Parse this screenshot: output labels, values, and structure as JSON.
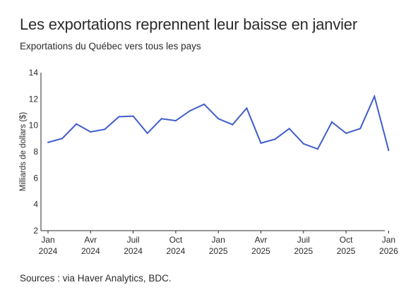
{
  "header": {
    "title": "Les exportations reprennent leur baisse en janvier",
    "subtitle": "Exportations du Québec vers tous les pays"
  },
  "footer": {
    "source": "Sources : via Haver Analytics, BDC."
  },
  "colors": {
    "line": "#3f5ccc",
    "axis": "#2b2b2b"
  },
  "chart_data": {
    "type": "line",
    "title": "Les exportations reprennent leur baisse en janvier",
    "subtitle": "Exportations du Québec vers tous les pays",
    "xlabel": "",
    "ylabel": "Milliards de dollars ($)",
    "ylim": [
      2,
      14
    ],
    "yticks": [
      2,
      4,
      6,
      8,
      10,
      12,
      14
    ],
    "grid": false,
    "legend": "none",
    "x_tick_labels": [
      {
        "month": "Jan",
        "year": "2024",
        "date": "2024-01"
      },
      {
        "month": "Avr",
        "year": "2024",
        "date": "2024-04"
      },
      {
        "month": "Juil",
        "year": "2024",
        "date": "2024-07"
      },
      {
        "month": "Oct",
        "year": "2024",
        "date": "2024-10"
      },
      {
        "month": "Jan",
        "year": "2025",
        "date": "2025-01"
      },
      {
        "month": "Avr",
        "year": "2025",
        "date": "2025-04"
      },
      {
        "month": "Juil",
        "year": "2025",
        "date": "2025-07"
      },
      {
        "month": "Oct",
        "year": "2025",
        "date": "2025-10"
      },
      {
        "month": "Jan",
        "year": "2026",
        "date": "2026-01"
      }
    ],
    "x": [
      "2024-01",
      "2024-02",
      "2024-03",
      "2024-04",
      "2024-05",
      "2024-06",
      "2024-07",
      "2024-08",
      "2024-09",
      "2024-10",
      "2024-11",
      "2024-12",
      "2025-01",
      "2025-02",
      "2025-03",
      "2025-04",
      "2025-05",
      "2025-06",
      "2025-07",
      "2025-08",
      "2025-09",
      "2025-10",
      "2025-11",
      "2025-12",
      "2026-01"
    ],
    "series": [
      {
        "values": [
          8.7,
          9.0,
          10.1,
          9.5,
          9.7,
          10.65,
          10.7,
          9.4,
          10.5,
          10.35,
          11.1,
          11.6,
          10.5,
          10.05,
          11.3,
          8.65,
          8.95,
          9.75,
          8.6,
          8.2,
          10.25,
          9.4,
          9.75,
          12.2,
          8.1
        ]
      }
    ]
  }
}
